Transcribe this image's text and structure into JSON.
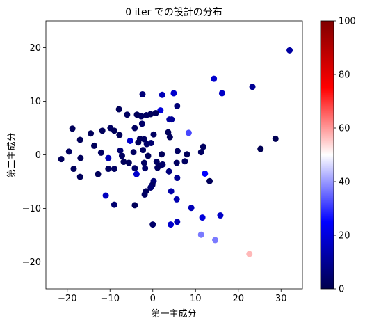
{
  "chart_data": {
    "type": "scatter",
    "title": "0 iter での設計の分布",
    "xlabel": "第一主成分",
    "ylabel": "第二主成分",
    "xlim": [
      -25,
      35
    ],
    "ylim": [
      -25,
      25
    ],
    "xticks": [
      -20,
      -10,
      0,
      10,
      20,
      30
    ],
    "yticks": [
      -20,
      -10,
      0,
      10,
      20
    ],
    "grid": false,
    "colorbar": {
      "colormap": "seismic",
      "min": 0,
      "max": 100,
      "ticks": [
        0,
        20,
        40,
        60,
        80,
        100
      ]
    },
    "points": [
      {
        "x": 32.0,
        "y": 19.5,
        "c": 12
      },
      {
        "x": 23.3,
        "y": 12.7,
        "c": 10
      },
      {
        "x": 14.3,
        "y": 14.2,
        "c": 18
      },
      {
        "x": 16.2,
        "y": 11.5,
        "c": 17
      },
      {
        "x": 28.7,
        "y": 3.0,
        "c": 1
      },
      {
        "x": 25.2,
        "y": 1.1,
        "c": 1
      },
      {
        "x": 8.4,
        "y": 4.1,
        "c": 32
      },
      {
        "x": 11.8,
        "y": 1.5,
        "c": 3
      },
      {
        "x": 11.3,
        "y": 0.5,
        "c": 3
      },
      {
        "x": 12.2,
        "y": -3.5,
        "c": 25
      },
      {
        "x": 13.3,
        "y": -4.9,
        "c": 2
      },
      {
        "x": 11.6,
        "y": -11.7,
        "c": 20
      },
      {
        "x": 15.8,
        "y": -11.3,
        "c": 17
      },
      {
        "x": 11.3,
        "y": -14.9,
        "c": 37
      },
      {
        "x": 14.6,
        "y": -15.9,
        "c": 37
      },
      {
        "x": 22.6,
        "y": -18.5,
        "c": 57
      },
      {
        "x": 4.9,
        "y": 11.5,
        "c": 18
      },
      {
        "x": 2.2,
        "y": 11.2,
        "c": 15
      },
      {
        "x": -2.4,
        "y": 11.3,
        "c": 6
      },
      {
        "x": 5.7,
        "y": 9.1,
        "c": 6
      },
      {
        "x": 1.8,
        "y": 8.3,
        "c": 20
      },
      {
        "x": 0.7,
        "y": 7.8,
        "c": 2
      },
      {
        "x": -0.5,
        "y": 7.6,
        "c": 2
      },
      {
        "x": -1.5,
        "y": 7.4,
        "c": 3
      },
      {
        "x": -2.7,
        "y": 7.2,
        "c": 3
      },
      {
        "x": -3.7,
        "y": 7.5,
        "c": 2
      },
      {
        "x": -6.0,
        "y": 7.5,
        "c": 3
      },
      {
        "x": -7.9,
        "y": 8.5,
        "c": 2
      },
      {
        "x": 3.9,
        "y": 6.6,
        "c": 12
      },
      {
        "x": 4.4,
        "y": 6.6,
        "c": 10
      },
      {
        "x": -2.5,
        "y": 5.8,
        "c": 4
      },
      {
        "x": -4.2,
        "y": 5.0,
        "c": 3
      },
      {
        "x": -5.3,
        "y": 2.6,
        "c": 18
      },
      {
        "x": -9.9,
        "y": 5.0,
        "c": 3
      },
      {
        "x": -11.8,
        "y": 4.5,
        "c": 2
      },
      {
        "x": -9.0,
        "y": 4.5,
        "c": 2
      },
      {
        "x": -7.8,
        "y": 3.7,
        "c": 2
      },
      {
        "x": -14.5,
        "y": 4.0,
        "c": 2
      },
      {
        "x": -18.8,
        "y": 4.9,
        "c": 2
      },
      {
        "x": -17.0,
        "y": 2.8,
        "c": 2
      },
      {
        "x": -13.7,
        "y": 1.7,
        "c": 2
      },
      {
        "x": -12.1,
        "y": 0.4,
        "c": 3
      },
      {
        "x": -19.6,
        "y": 0.6,
        "c": 3
      },
      {
        "x": -21.4,
        "y": -0.8,
        "c": 2
      },
      {
        "x": -16.9,
        "y": -0.6,
        "c": 2
      },
      {
        "x": -10.4,
        "y": -0.6,
        "c": 15
      },
      {
        "x": -7.6,
        "y": 0.8,
        "c": 5
      },
      {
        "x": -7.2,
        "y": -0.2,
        "c": 3
      },
      {
        "x": -6.8,
        "y": -1.3,
        "c": 2
      },
      {
        "x": -5.6,
        "y": -1.5,
        "c": 2
      },
      {
        "x": -4.5,
        "y": 0.5,
        "c": 3
      },
      {
        "x": -3.4,
        "y": 2.3,
        "c": 2
      },
      {
        "x": -3.0,
        "y": 3.0,
        "c": 2
      },
      {
        "x": -2.0,
        "y": 2.9,
        "c": 3
      },
      {
        "x": -1.4,
        "y": 2.0,
        "c": 4
      },
      {
        "x": -0.4,
        "y": 2.2,
        "c": 5
      },
      {
        "x": 0.2,
        "y": 3.8,
        "c": 3
      },
      {
        "x": 3.6,
        "y": 4.2,
        "c": 2
      },
      {
        "x": 4.0,
        "y": 3.3,
        "c": 2
      },
      {
        "x": -2.3,
        "y": 0.9,
        "c": 3
      },
      {
        "x": -1.1,
        "y": -0.2,
        "c": 2
      },
      {
        "x": 2.1,
        "y": 0.1,
        "c": 2
      },
      {
        "x": 5.8,
        "y": 0.7,
        "c": 3
      },
      {
        "x": 8.0,
        "y": 0.1,
        "c": 2
      },
      {
        "x": -9.0,
        "y": -2.6,
        "c": 3
      },
      {
        "x": -10.4,
        "y": -2.6,
        "c": 3
      },
      {
        "x": -12.8,
        "y": -3.6,
        "c": 2
      },
      {
        "x": -17.0,
        "y": -4.1,
        "c": 2
      },
      {
        "x": -18.5,
        "y": -2.6,
        "c": 2
      },
      {
        "x": -4.2,
        "y": -2.5,
        "c": 4
      },
      {
        "x": -3.8,
        "y": -3.6,
        "c": 18
      },
      {
        "x": -2.0,
        "y": -1.5,
        "c": 3
      },
      {
        "x": -1.8,
        "y": -2.5,
        "c": 4
      },
      {
        "x": 0.9,
        "y": -1.3,
        "c": 3
      },
      {
        "x": 1.1,
        "y": -2.4,
        "c": 3
      },
      {
        "x": 1.8,
        "y": -2.0,
        "c": 2
      },
      {
        "x": 2.3,
        "y": -1.8,
        "c": 4
      },
      {
        "x": 5.6,
        "y": -1.5,
        "c": 3
      },
      {
        "x": 7.5,
        "y": -1.2,
        "c": 3
      },
      {
        "x": 3.8,
        "y": -3.1,
        "c": 7
      },
      {
        "x": 5.7,
        "y": -4.3,
        "c": 10
      },
      {
        "x": 0.2,
        "y": -4.9,
        "c": 6
      },
      {
        "x": -0.1,
        "y": -5.6,
        "c": 3
      },
      {
        "x": -0.5,
        "y": -6.1,
        "c": 5
      },
      {
        "x": -1.6,
        "y": -6.8,
        "c": 2
      },
      {
        "x": -1.9,
        "y": -7.4,
        "c": 3
      },
      {
        "x": 4.3,
        "y": -6.8,
        "c": 13
      },
      {
        "x": -11.0,
        "y": -7.6,
        "c": 16
      },
      {
        "x": -9.0,
        "y": -9.3,
        "c": 5
      },
      {
        "x": -4.2,
        "y": -9.4,
        "c": 2
      },
      {
        "x": 5.6,
        "y": -8.3,
        "c": 14
      },
      {
        "x": 9.0,
        "y": -9.9,
        "c": 15
      },
      {
        "x": 4.2,
        "y": -13.0,
        "c": 18
      },
      {
        "x": 5.7,
        "y": -12.5,
        "c": 15
      },
      {
        "x": 0.0,
        "y": -13.0,
        "c": 4
      }
    ]
  }
}
